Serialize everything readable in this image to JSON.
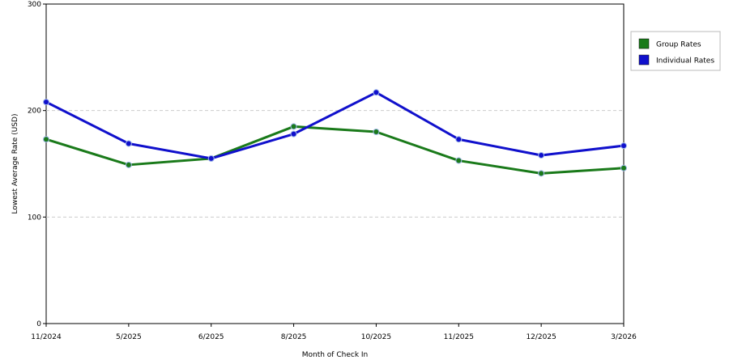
{
  "chart_data": {
    "type": "line",
    "title": "",
    "xlabel": "Month of Check In",
    "ylabel": "Lowest Average Rate (USD)",
    "ylim": [
      0,
      300
    ],
    "yticks": [
      0,
      100,
      200,
      300
    ],
    "grid": "horizontal dashed",
    "legend_position": "right",
    "categories": [
      "11/2024",
      "5/2025",
      "6/2025",
      "8/2025",
      "10/2025",
      "11/2025",
      "12/2025",
      "3/2026"
    ],
    "series": [
      {
        "name": "Group Rates",
        "color": "#1a7a1a",
        "values": [
          173,
          149,
          155,
          185,
          180,
          153,
          141,
          146
        ]
      },
      {
        "name": "Individual Rates",
        "color": "#1010cc",
        "values": [
          208,
          169,
          155,
          178,
          217,
          173,
          158,
          167
        ]
      }
    ]
  }
}
